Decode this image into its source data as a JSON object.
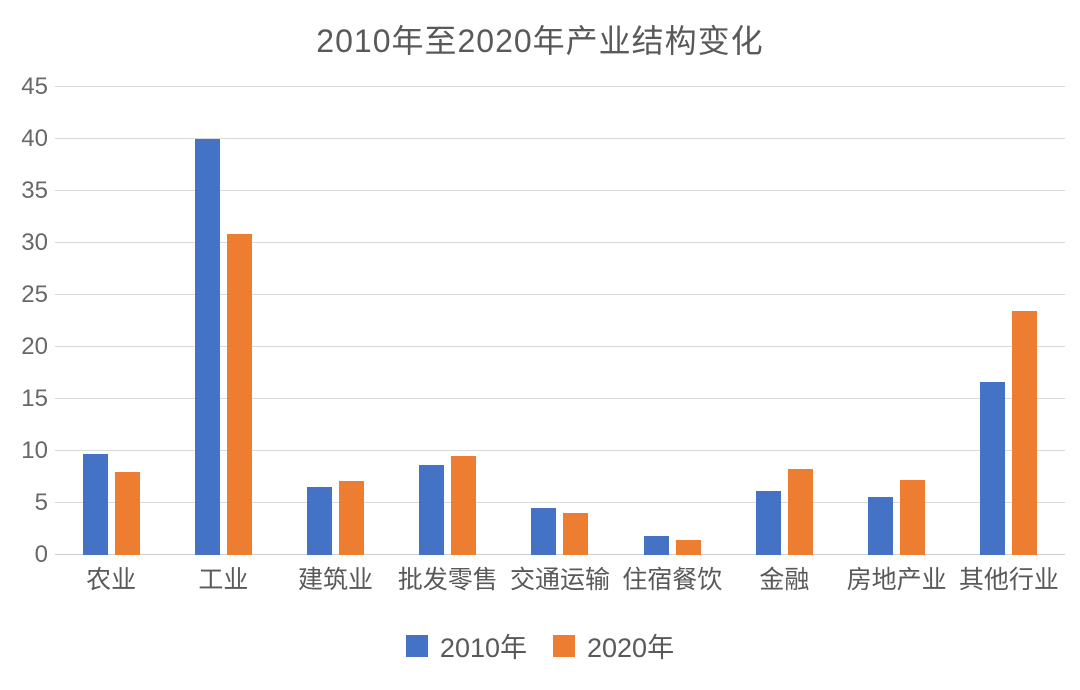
{
  "chart_data": {
    "type": "bar",
    "title": "2010年至2020年产业结构变化",
    "categories": [
      "农业",
      "工业",
      "建筑业",
      "批发零售",
      "交通运输",
      "住宿餐饮",
      "金融",
      "房地产业",
      "其他行业"
    ],
    "series": [
      {
        "name": "2010年",
        "color": "#4472C4",
        "values": [
          9.7,
          40,
          6.5,
          8.7,
          4.5,
          1.8,
          6.2,
          5.6,
          16.6
        ]
      },
      {
        "name": "2020年",
        "color": "#ED7D31",
        "values": [
          8.0,
          30.9,
          7.1,
          9.5,
          4.0,
          1.4,
          8.3,
          7.2,
          23.5
        ]
      }
    ],
    "ylim": [
      0,
      45
    ],
    "ytick_step": 5,
    "yticks": [
      0,
      5,
      10,
      15,
      20,
      25,
      30,
      35,
      40,
      45
    ],
    "grid": true,
    "legend_position": "bottom",
    "gridline_color": "#d9d9d9",
    "text_color": "#595959"
  }
}
